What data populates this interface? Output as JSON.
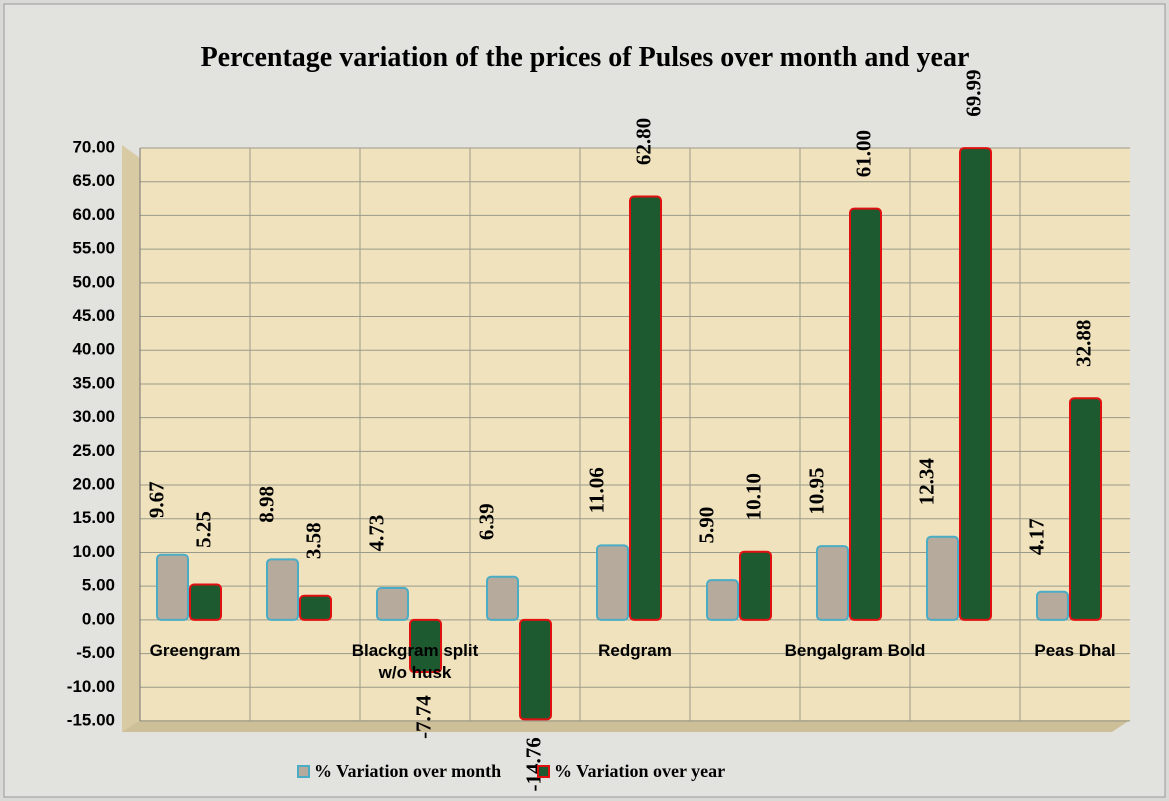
{
  "chart_data": {
    "type": "bar",
    "title": "Percentage variation of the prices of Pulses over month and year",
    "categories": [
      "Greengram",
      null,
      "Blackgram  split w/o husk",
      null,
      "Redgram",
      null,
      "Bengalgram Bold",
      null,
      "Peas Dhal"
    ],
    "series": [
      {
        "name": "%  Variation over month",
        "color": "#b5aa9c",
        "edge": "#4bacc6",
        "values": [
          9.67,
          8.98,
          4.73,
          6.39,
          11.06,
          5.9,
          10.95,
          12.34,
          4.17
        ],
        "value_labels": [
          "9.67",
          "8.98",
          "4.73",
          "6.39",
          "11.06",
          "5.90",
          "10.95",
          "12.34",
          "4.17"
        ]
      },
      {
        "name": "%  Variation over year",
        "color": "#1e5a30",
        "edge": "#e01010",
        "values": [
          5.25,
          3.58,
          -7.74,
          -14.76,
          62.8,
          10.1,
          61.0,
          69.99,
          32.88
        ],
        "value_labels": [
          "5.25",
          "3.58",
          "-7.74",
          "-14.76",
          "62.80",
          "10.10",
          "61.00",
          "69.99",
          "32.88"
        ]
      }
    ],
    "ylim": [
      -15,
      70
    ],
    "yticks": [
      {
        "value": -15,
        "label": "-15.00"
      },
      {
        "value": -10,
        "label": "-10.00"
      },
      {
        "value": -5,
        "label": "-5.00"
      },
      {
        "value": 0,
        "label": "0.00"
      },
      {
        "value": 5,
        "label": "5.00"
      },
      {
        "value": 10,
        "label": "10.00"
      },
      {
        "value": 15,
        "label": "15.00"
      },
      {
        "value": 20,
        "label": "20.00"
      },
      {
        "value": 25,
        "label": "25.00"
      },
      {
        "value": 30,
        "label": "30.00"
      },
      {
        "value": 35,
        "label": "35.00"
      },
      {
        "value": 40,
        "label": "40.00"
      },
      {
        "value": 45,
        "label": "45.00"
      },
      {
        "value": 50,
        "label": "50.00"
      },
      {
        "value": 55,
        "label": "55.00"
      },
      {
        "value": 60,
        "label": "60.00"
      },
      {
        "value": 65,
        "label": "65.00"
      },
      {
        "value": 70,
        "label": "70.00"
      }
    ],
    "grid": true
  }
}
